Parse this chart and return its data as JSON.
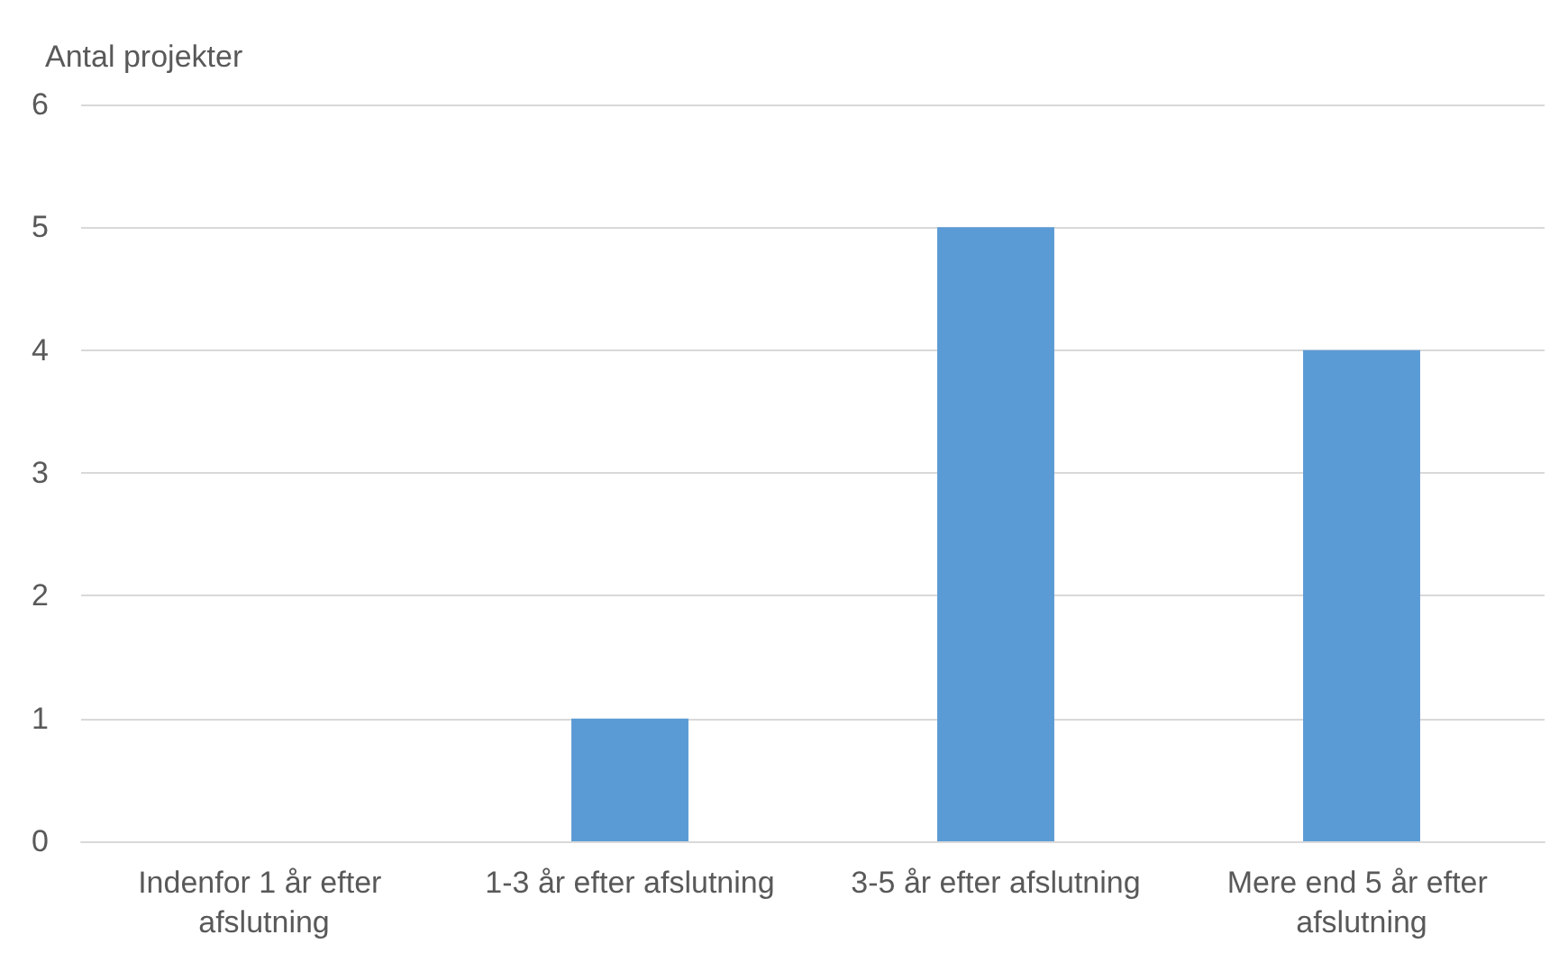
{
  "chart_data": {
    "type": "bar",
    "ylabel": "Antal projekter",
    "categories": [
      "Indenfor 1 år efter afslutning",
      "1-3 år efter afslutning",
      "3-5 år efter afslutning",
      "Mere end 5 år efter afslutning"
    ],
    "values": [
      0,
      1,
      5,
      4
    ],
    "color": "#5b9bd5",
    "ylim": [
      0,
      6
    ],
    "yticks": [
      0,
      1,
      2,
      3,
      4,
      5,
      6
    ],
    "grid": "y"
  }
}
